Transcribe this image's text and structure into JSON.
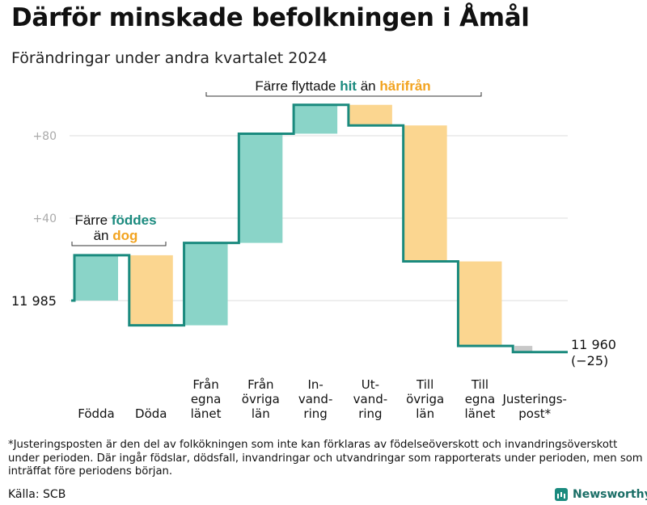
{
  "title": "Därför minskade befolkningen i Åmål",
  "subtitle": "Förändringar under andra kvartalet 2024",
  "footnote": "*Justeringsposten är den del av folkökningen som inte kan förklaras av födelseöverskott och invandringsöverskott under perioden. Där ingår födslar, dödsfall, invandringar och utvandringar som rapporterats under perioden, men som inträffat före periodens början.",
  "source": "Källa: SCB",
  "brand": "Newsworthy",
  "colors": {
    "increase": "#8ad4c8",
    "decrease": "#fbd690",
    "adjustment": "#c8c8c8",
    "line": "#1a8a7e",
    "teal_text": "#1a8a7e",
    "orange_text": "#f2a31f"
  },
  "annotations": {
    "fodda": {
      "line1": "Färre",
      "hl1": "föddes",
      "line2": "än",
      "hl2": "dog"
    },
    "flytt": {
      "a": "Färre flyttade",
      "hl1": "hit",
      "b": "än",
      "hl2": "härifrån"
    }
  },
  "chart_data": {
    "type": "waterfall",
    "baseline": 11985,
    "start_label": "11  985",
    "end_label": "11 960",
    "end_change_label": "(−25)",
    "y_ticks": [
      {
        "value": 80,
        "label": "+80"
      },
      {
        "value": 40,
        "label": "+40"
      }
    ],
    "grid": true,
    "ylim": [
      -25,
      95
    ],
    "steps": [
      {
        "label": [
          "Födda"
        ],
        "delta": 22
      },
      {
        "label": [
          "Döda"
        ],
        "delta": -34
      },
      {
        "label": [
          "Från",
          "egna",
          "länet"
        ],
        "delta": 40
      },
      {
        "label": [
          "Från",
          "övriga",
          "län"
        ],
        "delta": 53
      },
      {
        "label": [
          "In-",
          "vand-",
          "ring"
        ],
        "delta": 14
      },
      {
        "label": [
          "Ut-",
          "vand-",
          "ring"
        ],
        "delta": -10
      },
      {
        "label": [
          "Till",
          "övriga",
          "län"
        ],
        "delta": -66
      },
      {
        "label": [
          "Till",
          "egna",
          "länet"
        ],
        "delta": -41
      },
      {
        "label": [
          "Justerings-",
          "post*"
        ],
        "delta": -3
      }
    ]
  }
}
